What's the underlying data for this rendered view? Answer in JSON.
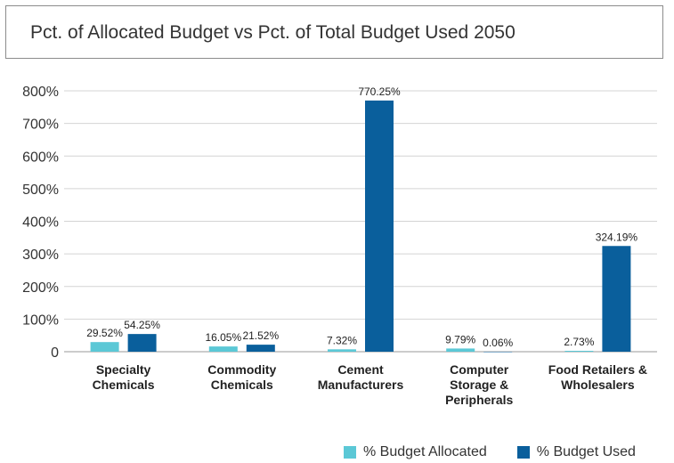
{
  "chart_data": {
    "type": "bar",
    "title": "Pct. of Allocated Budget vs Pct. of Total Budget Used 2050",
    "categories": [
      [
        "Specialty",
        "Chemicals"
      ],
      [
        "Commodity",
        "Chemicals"
      ],
      [
        "Cement",
        "Manufacturers"
      ],
      [
        "Computer",
        "Storage &",
        "Peripherals"
      ],
      [
        "Food Retailers &",
        "Wholesalers"
      ]
    ],
    "series": [
      {
        "name": "% Budget Allocated",
        "color": "#5bc8d6",
        "values": [
          29.52,
          16.05,
          7.32,
          9.79,
          2.73
        ],
        "labels": [
          "29.52%",
          "16.05%",
          "7.32%",
          "9.79%",
          "2.73%"
        ]
      },
      {
        "name": "% Budget Used",
        "color": "#0a5f9c",
        "values": [
          54.25,
          21.52,
          770.25,
          0.06,
          324.19
        ],
        "labels": [
          "54.25%",
          "21.52%",
          "770.25%",
          "0.06%",
          "324.19%"
        ]
      }
    ],
    "ylim": [
      0,
      800
    ],
    "yticks": [
      0,
      100,
      200,
      300,
      400,
      500,
      600,
      700,
      800
    ],
    "ytick_labels": [
      "0",
      "100%",
      "200%",
      "300%",
      "400%",
      "500%",
      "600%",
      "700%",
      "800%"
    ],
    "grid": true,
    "legend_position": "bottom-right"
  }
}
